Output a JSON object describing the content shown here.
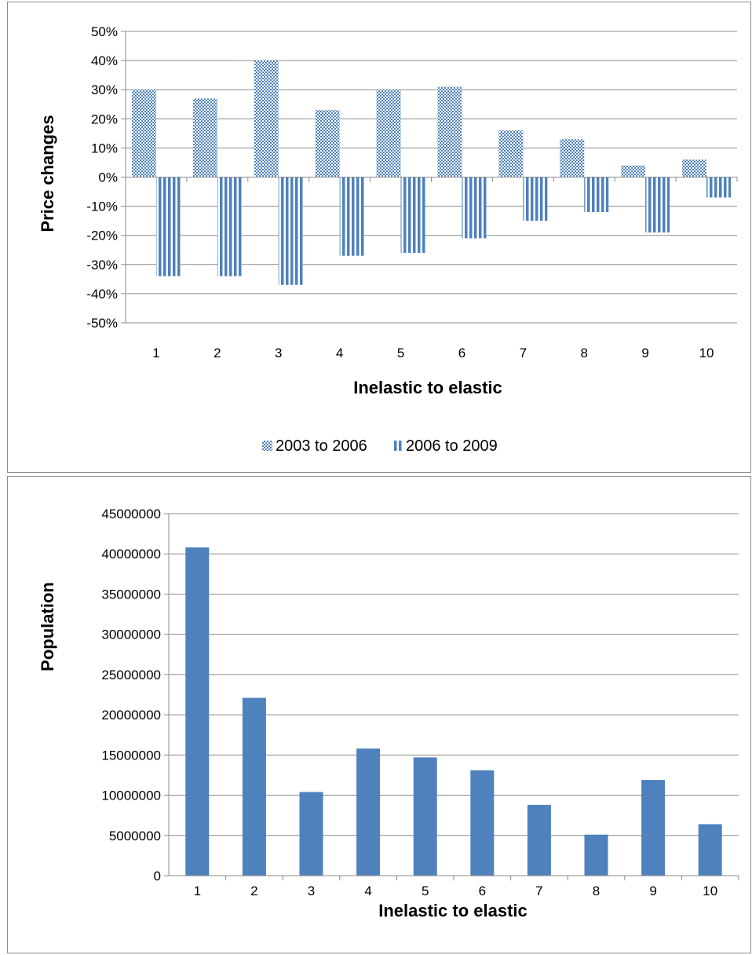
{
  "chart_data": [
    {
      "type": "bar",
      "categories": [
        "1",
        "2",
        "3",
        "4",
        "5",
        "6",
        "7",
        "8",
        "9",
        "10"
      ],
      "series": [
        {
          "name": "2003 to 2006",
          "values": [
            30,
            27,
            40,
            23,
            30,
            31,
            16,
            13,
            4,
            6
          ],
          "color": "#4f81bd",
          "pattern": "checker"
        },
        {
          "name": "2006 to 2009",
          "values": [
            -34,
            -34,
            -37,
            -27,
            -26,
            -21,
            -15,
            -12,
            -19,
            -7
          ],
          "color": "#4f81bd",
          "pattern": "vertical-stripes"
        }
      ],
      "xlabel": "Inelastic to elastic",
      "ylabel": "Price changes",
      "ylim": [
        -50,
        50
      ],
      "ytick_step": 10,
      "yticks": [
        "50%",
        "40%",
        "30%",
        "20%",
        "10%",
        "0%",
        "-10%",
        "-20%",
        "-30%",
        "-40%",
        "-50%"
      ],
      "grid": true,
      "legend": "bottom"
    },
    {
      "type": "bar",
      "categories": [
        "1",
        "2",
        "3",
        "4",
        "5",
        "6",
        "7",
        "8",
        "9",
        "10"
      ],
      "values": [
        40800000,
        22100000,
        10400000,
        15800000,
        14700000,
        13100000,
        8800000,
        5100000,
        11900000,
        6400000
      ],
      "color": "#4f81bd",
      "xlabel": "Inelastic to elastic",
      "ylabel": "Population",
      "ylim": [
        0,
        45000000
      ],
      "ytick_step": 5000000,
      "yticks": [
        "45000000",
        "40000000",
        "35000000",
        "30000000",
        "25000000",
        "20000000",
        "15000000",
        "10000000",
        "5000000",
        "0"
      ],
      "grid": true
    }
  ]
}
